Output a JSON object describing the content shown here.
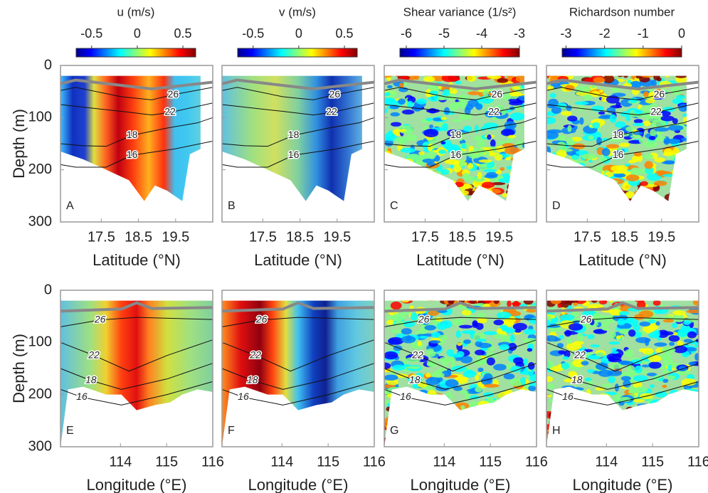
{
  "chart_data": [
    {
      "type": "section",
      "label": "A",
      "xlabel": "Latitude (°N)",
      "ylabel": "Depth (m)",
      "xlim": [
        16.4,
        20.5
      ],
      "xticks": [
        17.5,
        18.5,
        19.5
      ],
      "ylim": [
        0,
        300
      ],
      "yticks": [
        0,
        100,
        200,
        300
      ],
      "contours": [
        26,
        22,
        18,
        16
      ],
      "colorbar": {
        "title": "u (m/s)",
        "lim": [
          -0.67,
          0.64
        ],
        "ticks": [
          -0.5,
          0,
          0.5
        ]
      }
    },
    {
      "type": "section",
      "label": "B",
      "xlabel": "Latitude (°N)",
      "xlim": [
        16.4,
        20.5
      ],
      "xticks": [
        17.5,
        18.5,
        19.5
      ],
      "ylim": [
        0,
        300
      ],
      "yticks": [
        0,
        100,
        200,
        300
      ],
      "contours": [
        26,
        22,
        18,
        16
      ],
      "colorbar": {
        "title": "v (m/s)",
        "lim": [
          -0.67,
          0.64
        ],
        "ticks": [
          -0.5,
          0,
          0.5
        ]
      }
    },
    {
      "type": "section",
      "label": "C",
      "xlabel": "Latitude (°N)",
      "xlim": [
        16.4,
        20.5
      ],
      "xticks": [
        17.5,
        18.5,
        19.5
      ],
      "ylim": [
        0,
        300
      ],
      "yticks": [
        0,
        100,
        200,
        300
      ],
      "contours": [
        26,
        22,
        18,
        16
      ],
      "colorbar": {
        "title": "Shear variance (1/s²)",
        "lim": [
          -6.17,
          -3
        ],
        "ticks": [
          -6,
          -5,
          -4,
          -3
        ]
      }
    },
    {
      "type": "section",
      "label": "D",
      "xlabel": "Latitude (°N)",
      "xlim": [
        16.4,
        20.5
      ],
      "xticks": [
        17.5,
        18.5,
        19.5
      ],
      "ylim": [
        0,
        300
      ],
      "yticks": [
        0,
        100,
        200,
        300
      ],
      "contours": [
        26,
        22,
        18,
        16
      ],
      "colorbar": {
        "title": "Richardson number",
        "lim": [
          -3.1,
          0
        ],
        "ticks": [
          -3,
          -2,
          -1,
          0
        ]
      }
    },
    {
      "type": "section",
      "label": "E",
      "xlabel": "Longitude (°E)",
      "ylabel": "Depth (m)",
      "xlim": [
        112.7,
        116
      ],
      "xticks": [
        114,
        115,
        116
      ],
      "ylim": [
        0,
        300
      ],
      "yticks": [
        0,
        100,
        200,
        300
      ],
      "contours": [
        26,
        22,
        18,
        16
      ]
    },
    {
      "type": "section",
      "label": "F",
      "xlabel": "Longitude (°E)",
      "xlim": [
        112.7,
        116
      ],
      "xticks": [
        114,
        115,
        116
      ],
      "ylim": [
        0,
        300
      ],
      "yticks": [
        0,
        100,
        200,
        300
      ],
      "contours": [
        26,
        22,
        18,
        16
      ]
    },
    {
      "type": "section",
      "label": "G",
      "xlabel": "Longitude (°E)",
      "xlim": [
        112.7,
        116
      ],
      "xticks": [
        114,
        115,
        116
      ],
      "ylim": [
        0,
        300
      ],
      "yticks": [
        0,
        100,
        200,
        300
      ],
      "contours": [
        26,
        22,
        18,
        16
      ]
    },
    {
      "type": "section",
      "label": "H",
      "xlabel": "Longitude (°E)",
      "xlim": [
        112.7,
        116
      ],
      "xticks": [
        114,
        115,
        116
      ],
      "ylim": [
        0,
        300
      ],
      "yticks": [
        0,
        100,
        200,
        300
      ],
      "contours": [
        26,
        22,
        18,
        16
      ]
    }
  ]
}
